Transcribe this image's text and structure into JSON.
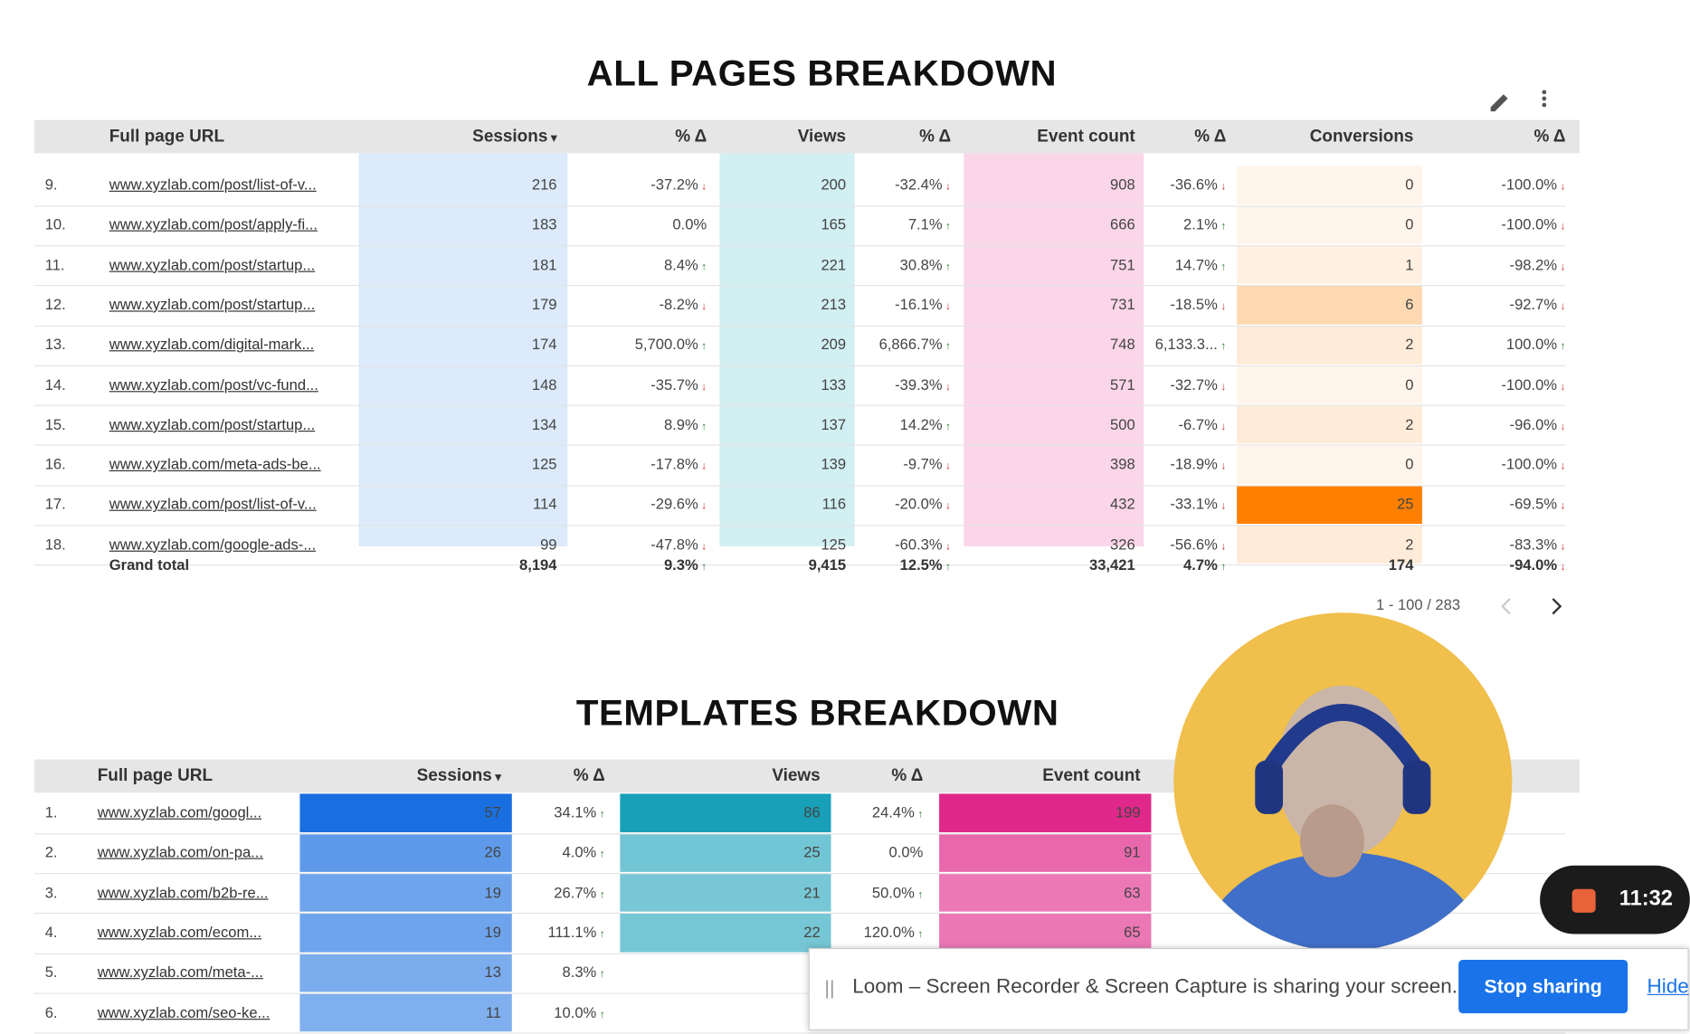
{
  "all_pages": {
    "title": "ALL PAGES BREAKDOWN",
    "headers": [
      "Full page URL",
      "Sessions",
      "% Δ",
      "Views",
      "% Δ",
      "Event count",
      "% Δ",
      "Conversions",
      "% Δ"
    ],
    "rows": [
      {
        "index": "9.",
        "cells": [
          "www.xyzlab.com/post/list-of-v...",
          "216",
          "-37.2%",
          "200",
          "-32.4%",
          "908",
          "-36.6%",
          "0",
          "-100.0%"
        ]
      },
      {
        "index": "10.",
        "cells": [
          "www.xyzlab.com/post/apply-fi...",
          "183",
          "0.0%",
          "165",
          "7.1%",
          "666",
          "2.1%",
          "0",
          "-100.0%"
        ]
      },
      {
        "index": "11.",
        "cells": [
          "www.xyzlab.com/post/startup...",
          "181",
          "8.4%",
          "221",
          "30.8%",
          "751",
          "14.7%",
          "1",
          "-98.2%"
        ]
      },
      {
        "index": "12.",
        "cells": [
          "www.xyzlab.com/post/startup...",
          "179",
          "-8.2%",
          "213",
          "-16.1%",
          "731",
          "-18.5%",
          "6",
          "-92.7%"
        ]
      },
      {
        "index": "13.",
        "cells": [
          "www.xyzlab.com/digital-mark...",
          "174",
          "5,700.0%",
          "209",
          "6,866.7%",
          "748",
          "6,133.3...",
          "2",
          "100.0%"
        ]
      },
      {
        "index": "14.",
        "cells": [
          "www.xyzlab.com/post/vc-fund...",
          "148",
          "-35.7%",
          "133",
          "-39.3%",
          "571",
          "-32.7%",
          "0",
          "-100.0%"
        ]
      },
      {
        "index": "15.",
        "cells": [
          "www.xyzlab.com/post/startup...",
          "134",
          "8.9%",
          "137",
          "14.2%",
          "500",
          "-6.7%",
          "2",
          "-96.0%"
        ]
      },
      {
        "index": "16.",
        "cells": [
          "www.xyzlab.com/meta-ads-be...",
          "125",
          "-17.8%",
          "139",
          "-9.7%",
          "398",
          "-18.9%",
          "0",
          "-100.0%"
        ]
      },
      {
        "index": "17.",
        "cells": [
          "www.xyzlab.com/post/list-of-v...",
          "114",
          "-29.6%",
          "116",
          "-20.0%",
          "432",
          "-33.1%",
          "25",
          "-69.5%"
        ]
      },
      {
        "index": "18.",
        "cells": [
          "www.xyzlab.com/google-ads-...",
          "99",
          "-47.8%",
          "125",
          "-60.3%",
          "326",
          "-56.6%",
          "2",
          "-83.3%"
        ]
      }
    ],
    "total": {
      "label": "Grand total",
      "cells": [
        "8,194",
        "9.3%",
        "9,415",
        "12.5%",
        "33,421",
        "4.7%",
        "174",
        "-94.0%"
      ]
    },
    "pagination": "1 - 100 / 283"
  },
  "templates": {
    "title": "TEMPLATES BREAKDOWN",
    "headers": [
      "Full page URL",
      "Sessions",
      "% Δ",
      "Views",
      "% Δ",
      "Event count"
    ],
    "rows": [
      {
        "index": "1.",
        "cells": [
          "www.xyzlab.com/googl...",
          "57",
          "34.1%",
          "86",
          "24.4%",
          "199"
        ]
      },
      {
        "index": "2.",
        "cells": [
          "www.xyzlab.com/on-pa...",
          "26",
          "4.0%",
          "25",
          "0.0%",
          "91"
        ]
      },
      {
        "index": "3.",
        "cells": [
          "www.xyzlab.com/b2b-re...",
          "19",
          "26.7%",
          "21",
          "50.0%",
          "63"
        ]
      },
      {
        "index": "4.",
        "cells": [
          "www.xyzlab.com/ecom...",
          "19",
          "111.1%",
          "22",
          "120.0%",
          "65"
        ]
      },
      {
        "index": "5.",
        "cells": [
          "www.xyzlab.com/meta-...",
          "13",
          "8.3%",
          null,
          null,
          null
        ]
      },
      {
        "index": "6.",
        "cells": [
          "www.xyzlab.com/seo-ke...",
          "11",
          "10.0%",
          null,
          null,
          null
        ]
      }
    ]
  },
  "loom": {
    "message": "Loom – Screen Recorder & Screen Capture is sharing your screen.",
    "stop": "Stop sharing",
    "hide": "Hide"
  },
  "timer": "11:32"
}
